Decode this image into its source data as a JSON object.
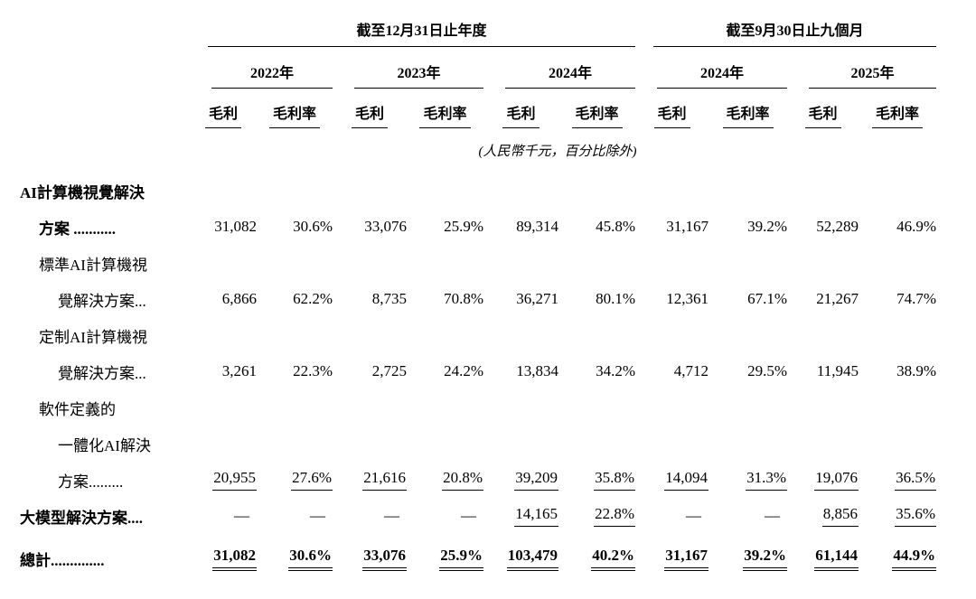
{
  "table": {
    "col_groups": [
      {
        "title": "截至12月31日止年度",
        "years": [
          "2022年",
          "2023年",
          "2024年"
        ]
      },
      {
        "title": "截至9月30日止九個月",
        "years": [
          "2024年",
          "2025年"
        ]
      }
    ],
    "measure_labels": [
      "毛利",
      "毛利率"
    ],
    "unit_note": "(人民幣千元，百分比除外)",
    "rows": [
      {
        "label": "AI計算機視覺解決",
        "indent": 0,
        "bold": true
      },
      {
        "label": "方案 ...........",
        "indent": 1,
        "bold": true,
        "values": [
          "31,082",
          "30.6%",
          "33,076",
          "25.9%",
          "89,314",
          "45.8%",
          "31,167",
          "39.2%",
          "52,289",
          "46.9%"
        ]
      },
      {
        "label": "標準AI計算機視",
        "indent": 1,
        "bold": false
      },
      {
        "label": "覺解決方案...",
        "indent": 2,
        "bold": false,
        "values": [
          "6,866",
          "62.2%",
          "8,735",
          "70.8%",
          "36,271",
          "80.1%",
          "12,361",
          "67.1%",
          "21,267",
          "74.7%"
        ]
      },
      {
        "label": "定制AI計算機視",
        "indent": 1,
        "bold": false
      },
      {
        "label": "覺解決方案...",
        "indent": 2,
        "bold": false,
        "values": [
          "3,261",
          "22.3%",
          "2,725",
          "24.2%",
          "13,834",
          "34.2%",
          "4,712",
          "29.5%",
          "11,945",
          "38.9%"
        ]
      },
      {
        "label": "軟件定義的",
        "indent": 1,
        "bold": false
      },
      {
        "label": "一體化AI解決",
        "indent": 2,
        "bold": false
      },
      {
        "label": "方案.........",
        "indent": 2,
        "bold": false,
        "rule": "single",
        "values": [
          "20,955",
          "27.6%",
          "21,616",
          "20.8%",
          "39,209",
          "35.8%",
          "14,094",
          "31.3%",
          "19,076",
          "36.5%"
        ]
      },
      {
        "label": "大模型解決方案....",
        "indent": 0,
        "bold": true,
        "rule": "single",
        "values": [
          "—",
          "—",
          "—",
          "—",
          "14,165",
          "22.8%",
          "—",
          "—",
          "8,856",
          "35.6%"
        ]
      },
      {
        "label": "總計..............",
        "indent": 0,
        "bold": true,
        "rule": "double",
        "total": true,
        "values": [
          "31,082",
          "30.6%",
          "33,076",
          "25.9%",
          "103,479",
          "40.2%",
          "31,167",
          "39.2%",
          "61,144",
          "44.9%"
        ]
      }
    ]
  }
}
